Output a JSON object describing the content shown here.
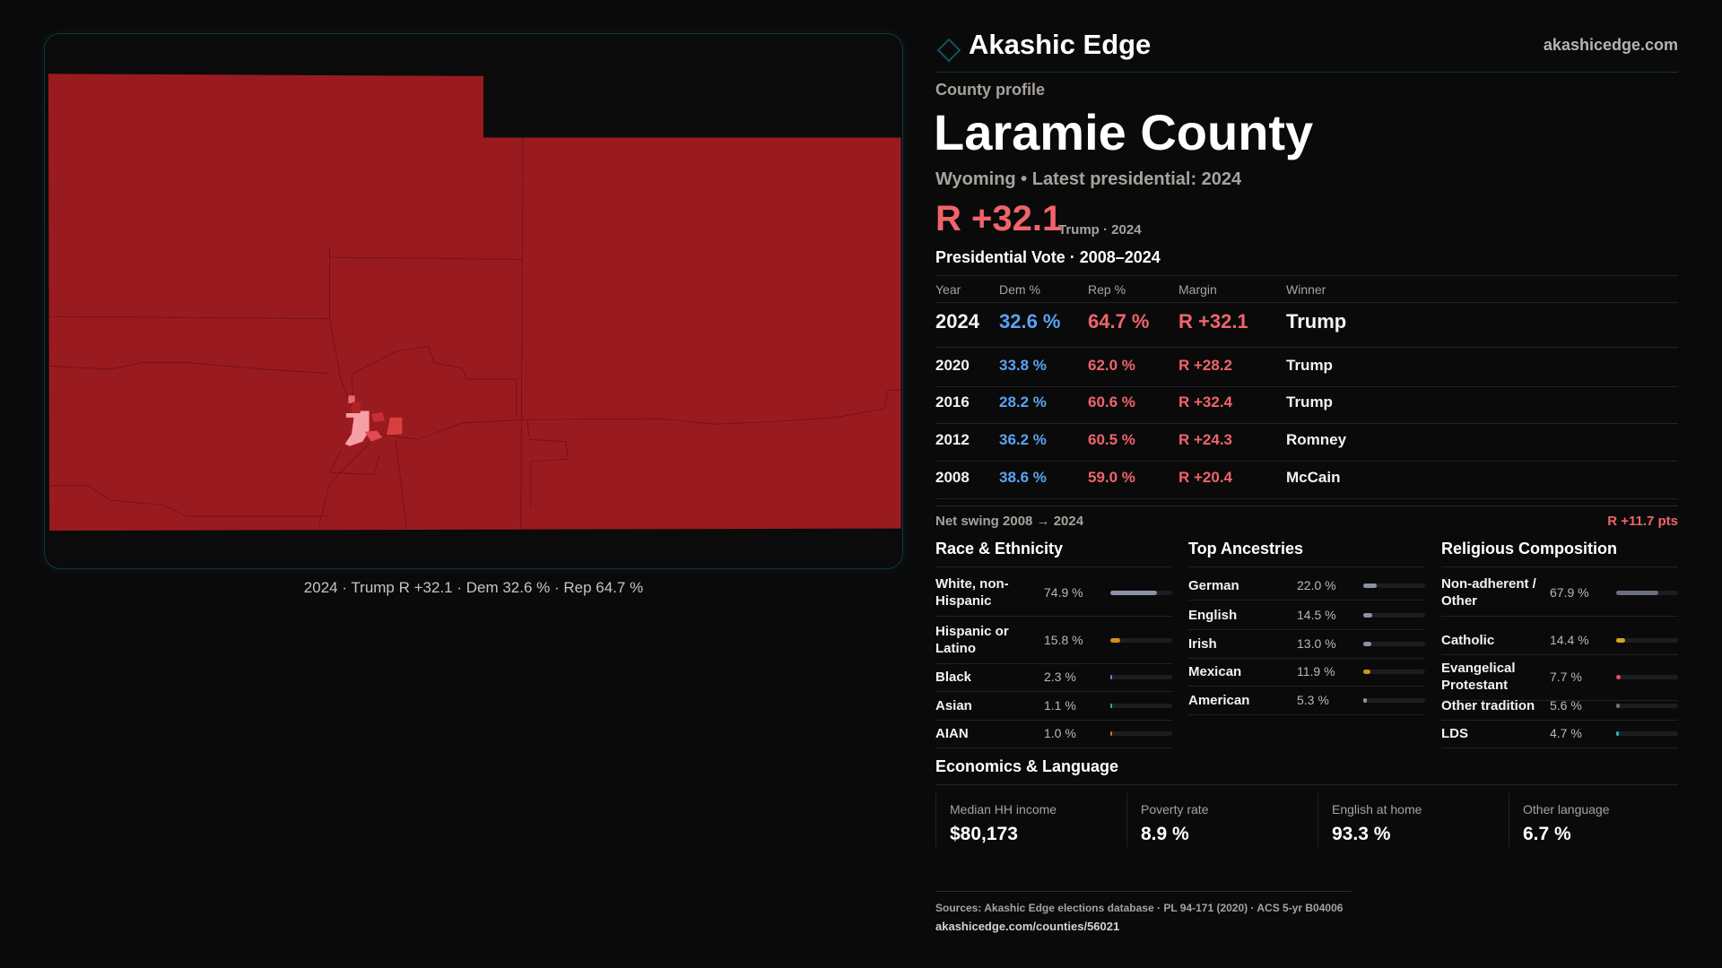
{
  "brand": {
    "name": "Akashic Edge",
    "site": "akashicedge.com"
  },
  "profile": {
    "kicker": "County profile",
    "title": "Laramie County",
    "subtitle": "Wyoming • Latest presidential: 2024",
    "headline_margin": "R +32.1",
    "headline_note": "Trump · 2024"
  },
  "map": {
    "caption": "2024 · Trump R +32.1 · Dem 32.6 % · Rep 64.7 %",
    "colors": {
      "base": "#9a1b1f",
      "light": "#f4a0a6",
      "mid": "#e04a50",
      "salmon": "#d8403f"
    }
  },
  "vote": {
    "title": "Presidential Vote · 2008–2024",
    "headers": [
      "Year",
      "Dem %",
      "Rep %",
      "Margin",
      "Winner"
    ],
    "rows": [
      {
        "year": "2024",
        "dem": "32.6 %",
        "rep": "64.7 %",
        "margin": "R +32.1",
        "winner": "Trump"
      },
      {
        "year": "2020",
        "dem": "33.8 %",
        "rep": "62.0 %",
        "margin": "R +28.2",
        "winner": "Trump"
      },
      {
        "year": "2016",
        "dem": "28.2 %",
        "rep": "60.6 %",
        "margin": "R +32.4",
        "winner": "Trump"
      },
      {
        "year": "2012",
        "dem": "36.2 %",
        "rep": "60.5 %",
        "margin": "R +24.3",
        "winner": "Romney"
      },
      {
        "year": "2008",
        "dem": "38.6 %",
        "rep": "59.0 %",
        "margin": "R +20.4",
        "winner": "McCain"
      }
    ],
    "swing_label": "Net swing 2008 → 2024",
    "swing_value": "R +11.7 pts"
  },
  "race": {
    "title": "Race & Ethnicity",
    "items": [
      {
        "label": "White, non-Hispanic",
        "value": "74.9 %",
        "pct": 74.9,
        "color": "#8a93a8"
      },
      {
        "label": "Hispanic or Latino",
        "value": "15.8 %",
        "pct": 15.8,
        "color": "#d4901a"
      },
      {
        "label": "Black",
        "value": "2.3 %",
        "pct": 2.3,
        "color": "#8b6fd8"
      },
      {
        "label": "Asian",
        "value": "1.1 %",
        "pct": 1.1,
        "color": "#2bb39a"
      },
      {
        "label": "AIAN",
        "value": "1.0 %",
        "pct": 1.0,
        "color": "#c8741f"
      }
    ]
  },
  "ancestry": {
    "title": "Top Ancestries",
    "items": [
      {
        "label": "German",
        "value": "22.0 %",
        "pct": 22.0,
        "color": "#8a93a8"
      },
      {
        "label": "English",
        "value": "14.5 %",
        "pct": 14.5,
        "color": "#8a93a8"
      },
      {
        "label": "Irish",
        "value": "13.0 %",
        "pct": 13.0,
        "color": "#8a93a8"
      },
      {
        "label": "Mexican",
        "value": "11.9 %",
        "pct": 11.9,
        "color": "#d4901a"
      },
      {
        "label": "American",
        "value": "5.3 %",
        "pct": 5.3,
        "color": "#8a93a8"
      }
    ]
  },
  "religion": {
    "title": "Religious Composition",
    "items": [
      {
        "label": "Non-adherent / Other",
        "value": "67.9 %",
        "pct": 67.9,
        "color": "#6b7080"
      },
      {
        "label": "Catholic",
        "value": "14.4 %",
        "pct": 14.4,
        "color": "#d9a51a"
      },
      {
        "label": "Evangelical Protestant",
        "value": "7.7 %",
        "pct": 7.7,
        "color": "#e0525a"
      },
      {
        "label": "Other tradition",
        "value": "5.6 %",
        "pct": 5.6,
        "color": "#6b7080"
      },
      {
        "label": "LDS",
        "value": "4.7 %",
        "pct": 4.7,
        "color": "#22b8b0"
      }
    ]
  },
  "economics": {
    "title": "Economics & Language",
    "cards": [
      {
        "label": "Median HH income",
        "value": "$80,173"
      },
      {
        "label": "Poverty rate",
        "value": "8.9 %"
      },
      {
        "label": "English at home",
        "value": "93.3 %"
      },
      {
        "label": "Other language",
        "value": "6.7 %"
      }
    ]
  },
  "footer": {
    "sources": "Sources: Akashic Edge elections database · PL 94-171 (2020) · ACS 5-yr B04006",
    "url": "akashicedge.com/counties/56021"
  }
}
